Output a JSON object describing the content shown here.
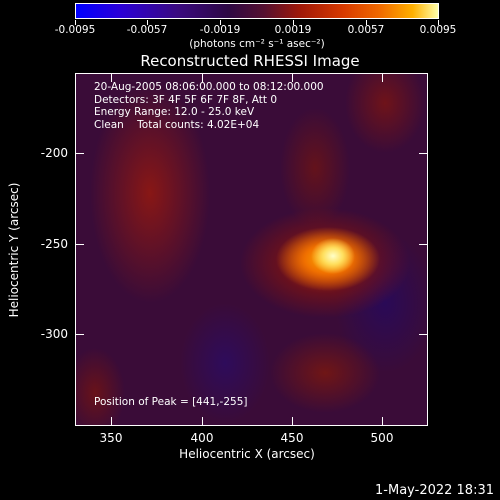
{
  "colorbar": {
    "ticks": [
      "-0.0095",
      "-0.0057",
      "-0.0019",
      "0.0019",
      "0.0057",
      "0.0095"
    ],
    "units": "(photons cm⁻² s⁻¹ asec⁻²)"
  },
  "title": "Reconstructed RHESSI Image",
  "annotations": {
    "line1": "20-Aug-2005 08:06:00.000 to 08:12:00.000",
    "line2": "Detectors: 3F 4F 5F 6F 7F 8F, Att 0",
    "line3": "Energy Range: 12.0 - 25.0 keV",
    "line4": "Clean    Total counts: 4.02E+04"
  },
  "peak": "Position of Peak = [441,-255]",
  "x_axis": {
    "label": "Heliocentric X (arcsec)",
    "ticks": [
      "350",
      "400",
      "450",
      "500"
    ]
  },
  "y_axis": {
    "label": "Heliocentric Y (arcsec)",
    "ticks": [
      "-200",
      "-250",
      "-300"
    ]
  },
  "timestamp": "1-May-2022 18:31",
  "colors": {
    "background": "#000000",
    "peak": "#ffff99",
    "low": "#3a0c38"
  }
}
